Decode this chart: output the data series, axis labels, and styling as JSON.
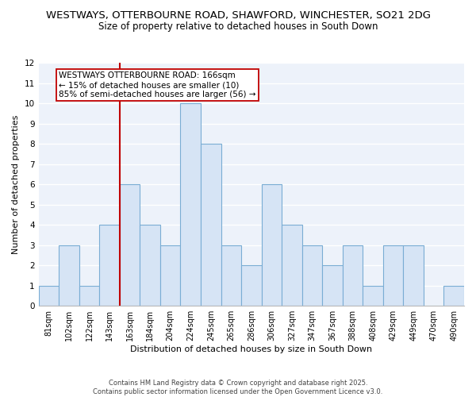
{
  "title1": "WESTWAYS, OTTERBOURNE ROAD, SHAWFORD, WINCHESTER, SO21 2DG",
  "title2": "Size of property relative to detached houses in South Down",
  "xlabel": "Distribution of detached houses by size in South Down",
  "ylabel": "Number of detached properties",
  "bins": [
    "81sqm",
    "102sqm",
    "122sqm",
    "143sqm",
    "163sqm",
    "184sqm",
    "204sqm",
    "224sqm",
    "245sqm",
    "265sqm",
    "286sqm",
    "306sqm",
    "327sqm",
    "347sqm",
    "367sqm",
    "388sqm",
    "408sqm",
    "429sqm",
    "449sqm",
    "470sqm",
    "490sqm"
  ],
  "values": [
    1,
    3,
    1,
    4,
    6,
    4,
    3,
    10,
    8,
    3,
    2,
    6,
    4,
    3,
    2,
    3,
    1,
    3,
    3,
    0,
    1
  ],
  "bar_color": "#d6e4f5",
  "bar_edge_color": "#7aadd4",
  "vline_color": "#c00000",
  "vline_bin_index": 4,
  "annotation_text": "WESTWAYS OTTERBOURNE ROAD: 166sqm\n← 15% of detached houses are smaller (10)\n85% of semi-detached houses are larger (56) →",
  "annotation_box_facecolor": "white",
  "annotation_box_edgecolor": "#c00000",
  "ylim": [
    0,
    12
  ],
  "yticks": [
    0,
    1,
    2,
    3,
    4,
    5,
    6,
    7,
    8,
    9,
    10,
    11,
    12
  ],
  "bg_color": "#edf2fa",
  "grid_color": "white",
  "footnote": "Contains HM Land Registry data © Crown copyright and database right 2025.\nContains public sector information licensed under the Open Government Licence v3.0.",
  "title_fontsize": 9.5,
  "subtitle_fontsize": 8.5,
  "tick_fontsize": 7,
  "ylabel_fontsize": 8,
  "xlabel_fontsize": 8,
  "annotation_fontsize": 7.5,
  "footnote_fontsize": 6
}
